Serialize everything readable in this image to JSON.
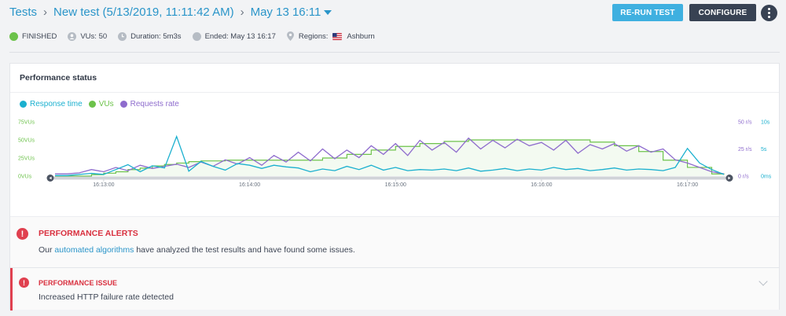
{
  "breadcrumb": {
    "root": "Tests",
    "test_name": "New test (5/13/2019, 11:11:42 AM)",
    "run": "May 13 16:11"
  },
  "actions": {
    "rerun_label": "RE-RUN TEST",
    "configure_label": "CONFIGURE"
  },
  "status_bar": {
    "status": "FINISHED",
    "vus": "VUs: 50",
    "duration": "Duration: 5m3s",
    "ended": "Ended: May 13 16:17",
    "regions_label": "Regions:",
    "region": "Ashburn"
  },
  "colors": {
    "response_time": "#1bb0cf",
    "vus": "#6cc24a",
    "requests_rate": "#8e6ccd",
    "alert": "#d9303f",
    "link": "#2a95c9"
  },
  "performance": {
    "title": "Performance status"
  },
  "chart_data": {
    "type": "line",
    "title": "",
    "legend": [
      "Response time",
      "VUs",
      "Requests rate"
    ],
    "legend_position": "top-left",
    "x_ticks": [
      "16:13:00",
      "16:14:00",
      "16:15:00",
      "16:16:00",
      "16:17:00"
    ],
    "x_range": [
      "16:12:40",
      "16:17:15"
    ],
    "y_left": {
      "label": "VUs",
      "ticks": [
        "0VUs",
        "25VUs",
        "50VUs",
        "75VUs"
      ],
      "range": [
        0,
        75
      ]
    },
    "y_right_rate": {
      "label": "Requests rate",
      "ticks": [
        "0 r/s",
        "25 r/s",
        "50 r/s"
      ],
      "range": [
        0,
        50
      ]
    },
    "y_right_time": {
      "label": "Response time",
      "ticks": [
        "0ms",
        "5s",
        "10s"
      ],
      "range": [
        0,
        10
      ]
    },
    "series": [
      {
        "name": "VUs",
        "axis": "vus",
        "x": [
          0,
          5,
          10,
          15,
          20,
          25,
          30,
          35,
          40,
          45,
          50,
          55,
          60,
          70,
          80,
          90,
          100,
          110,
          120,
          130,
          140,
          150,
          160,
          170,
          180,
          190,
          200,
          210,
          220,
          230,
          240,
          250,
          260,
          270,
          275
        ],
        "values": [
          0,
          0,
          0,
          2,
          4,
          6,
          9,
          11,
          14,
          16,
          18,
          20,
          21,
          22,
          22,
          22,
          22,
          25,
          30,
          36,
          41,
          45,
          48,
          50,
          50,
          50,
          50,
          50,
          47,
          42,
          34,
          22,
          12,
          3,
          2
        ]
      },
      {
        "name": "Requests rate",
        "axis": "rate",
        "x": [
          0,
          5,
          10,
          15,
          20,
          25,
          30,
          35,
          40,
          45,
          50,
          55,
          60,
          65,
          70,
          75,
          80,
          85,
          90,
          95,
          100,
          105,
          110,
          115,
          120,
          125,
          130,
          135,
          140,
          145,
          150,
          155,
          160,
          165,
          170,
          175,
          180,
          185,
          190,
          195,
          200,
          205,
          210,
          215,
          220,
          225,
          230,
          235,
          240,
          245,
          250,
          255,
          260,
          265,
          270,
          275
        ],
        "values": [
          2,
          2,
          3,
          6,
          4,
          8,
          5,
          10,
          7,
          9,
          11,
          8,
          13,
          9,
          15,
          11,
          17,
          10,
          19,
          13,
          22,
          14,
          25,
          16,
          24,
          17,
          28,
          20,
          30,
          19,
          33,
          24,
          31,
          22,
          35,
          25,
          33,
          26,
          34,
          28,
          31,
          24,
          33,
          21,
          29,
          25,
          30,
          23,
          28,
          22,
          25,
          15,
          12,
          8,
          4,
          2
        ]
      },
      {
        "name": "Response time",
        "axis": "time",
        "x": [
          0,
          5,
          10,
          15,
          20,
          25,
          30,
          35,
          40,
          45,
          50,
          55,
          60,
          65,
          70,
          75,
          80,
          85,
          90,
          95,
          100,
          105,
          110,
          115,
          120,
          125,
          130,
          135,
          140,
          145,
          150,
          155,
          160,
          165,
          170,
          175,
          180,
          185,
          190,
          195,
          200,
          205,
          210,
          215,
          220,
          225,
          230,
          235,
          240,
          245,
          250,
          255,
          260,
          265,
          270,
          275
        ],
        "values": [
          0.1,
          0.1,
          0.3,
          0.5,
          0.3,
          1.2,
          2.1,
          0.8,
          1.9,
          1.5,
          7.3,
          0.9,
          2.7,
          1.8,
          1.1,
          2.3,
          2.0,
          1.4,
          2.0,
          1.7,
          1.5,
          0.8,
          1.3,
          1.0,
          1.8,
          1.2,
          2.0,
          1.1,
          1.6,
          1.0,
          1.2,
          1.1,
          1.3,
          1.0,
          1.5,
          0.9,
          1.1,
          1.4,
          1.0,
          1.3,
          1.1,
          1.6,
          1.2,
          1.4,
          1.0,
          1.2,
          1.5,
          1.1,
          1.3,
          1.2,
          1.0,
          1.6,
          5.1,
          2.4,
          1.2,
          0.3
        ]
      }
    ],
    "grid": false
  },
  "alerts": {
    "title": "PERFORMANCE ALERTS",
    "text_prefix": "Our ",
    "link": "automated algorithms",
    "text_suffix": " have analyzed the test results and have found some issues."
  },
  "issue": {
    "title": "PERFORMANCE ISSUE",
    "text": "Increased HTTP failure rate detected"
  }
}
